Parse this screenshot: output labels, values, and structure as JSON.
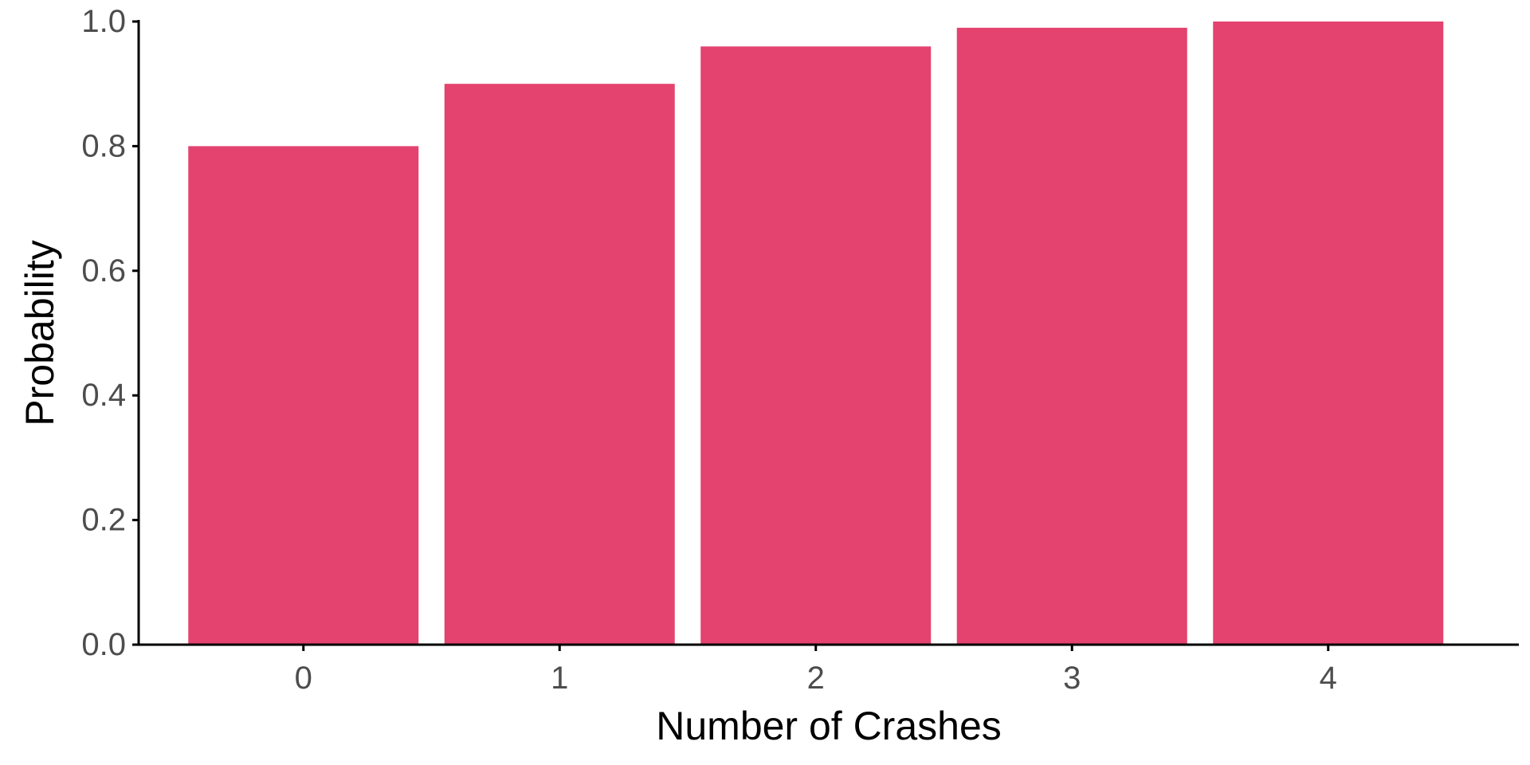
{
  "chart_data": {
    "type": "bar",
    "categories": [
      "0",
      "1",
      "2",
      "3",
      "4"
    ],
    "values": [
      0.8,
      0.9,
      0.96,
      0.99,
      1.0
    ],
    "title": "",
    "xlabel": "Number of Crashes",
    "ylabel": "Probability",
    "ylim": [
      0,
      1.0
    ],
    "yticks": [
      "0.0",
      "0.2",
      "0.4",
      "0.6",
      "0.8",
      "1.0"
    ],
    "grid": false,
    "bar_color": "#e4436f",
    "axis_color": "#000000",
    "tick_label_color": "#4d4d4d"
  }
}
